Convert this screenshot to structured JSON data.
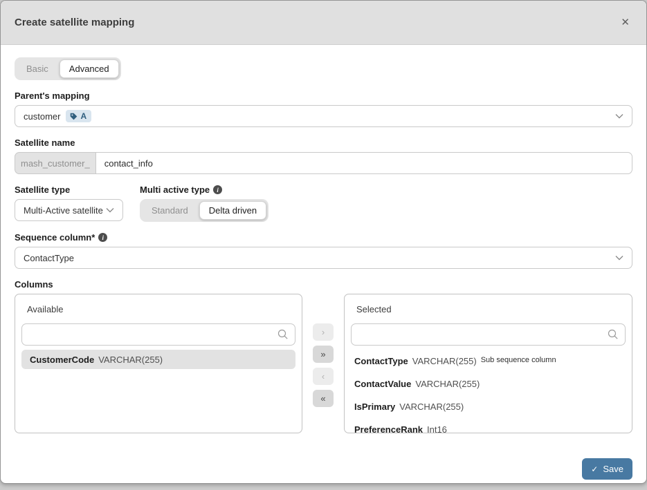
{
  "dialog": {
    "title": "Create satellite mapping",
    "close_glyph": "✕"
  },
  "tabs": {
    "items": [
      {
        "label": "Basic",
        "active": false
      },
      {
        "label": "Advanced",
        "active": true
      }
    ]
  },
  "fields": {
    "parent_mapping": {
      "label": "Parent's mapping",
      "value": "customer",
      "tag": "A"
    },
    "satellite_name": {
      "label": "Satellite name",
      "prefix": "mash_customer_",
      "value": "contact_info"
    },
    "satellite_type": {
      "label": "Satellite type",
      "value": "Multi-Active satellite"
    },
    "multi_active_type": {
      "label": "Multi active type",
      "info_glyph": "i",
      "options": [
        {
          "label": "Standard",
          "active": false
        },
        {
          "label": "Delta driven",
          "active": true
        }
      ]
    },
    "sequence_column": {
      "label": "Sequence column*",
      "info_glyph": "i",
      "value": "ContactType"
    }
  },
  "columns": {
    "label": "Columns",
    "available": {
      "title": "Available",
      "search_placeholder": "",
      "items": [
        {
          "name": "CustomerCode",
          "type": "VARCHAR(255)",
          "highlighted": true
        }
      ]
    },
    "transfer_buttons": [
      {
        "name": "move-selected-right-button",
        "glyph": "›",
        "enabled": false
      },
      {
        "name": "move-all-right-button",
        "glyph": "»",
        "enabled": true
      },
      {
        "name": "move-selected-left-button",
        "glyph": "‹",
        "enabled": false
      },
      {
        "name": "move-all-left-button",
        "glyph": "«",
        "enabled": true
      }
    ],
    "selected": {
      "title": "Selected",
      "search_placeholder": "",
      "items": [
        {
          "name": "ContactType",
          "type": "VARCHAR(255)",
          "note": "Sub sequence column"
        },
        {
          "name": "ContactValue",
          "type": "VARCHAR(255)",
          "note": ""
        },
        {
          "name": "IsPrimary",
          "type": "VARCHAR(255)",
          "note": ""
        },
        {
          "name": "PreferenceRank",
          "type": "Int16",
          "note": ""
        }
      ]
    }
  },
  "footer": {
    "save_label": "Save",
    "check_glyph": "✓"
  },
  "colors": {
    "accent": "#4879a2",
    "tag_bg": "#d9e5ef",
    "tag_fg": "#2f5e7e",
    "header_bg": "#e0e0e0"
  }
}
